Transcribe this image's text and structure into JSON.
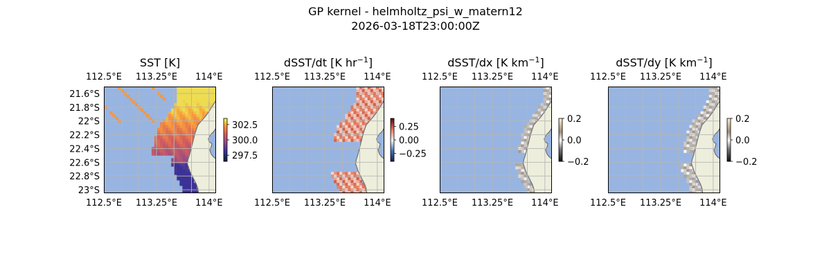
{
  "suptitle": {
    "line1": "GP kernel - helmholtz_psi_w_matern12",
    "line2": "2026-03-18T23:00:00Z"
  },
  "colors": {
    "ocean": "#98b5e2",
    "land": "#eeeedc",
    "coast": "#707070",
    "grid": "#b5b5b5"
  },
  "chart_data": [
    {
      "type": "heatmap",
      "title_main": "SST [K]",
      "title_sup": "",
      "title_end": "",
      "colormap": "thermal",
      "xlim": [
        112.5,
        114.1
      ],
      "ylim": [
        -23.05,
        -21.5
      ],
      "x_ticks": [
        112.5,
        113.25,
        114.0
      ],
      "x_tick_labels": [
        "112.5°E",
        "113.25°E",
        "114°E"
      ],
      "y_ticks": [
        -21.6,
        -21.8,
        -22.0,
        -22.2,
        -22.4,
        -22.6,
        -22.8,
        -23.0
      ],
      "y_tick_labels": [
        "21.6°S",
        "21.8°S",
        "22°S",
        "22.2°S",
        "22.4°S",
        "22.6°S",
        "22.8°S",
        "23°S"
      ],
      "grid": true,
      "colorbar": {
        "vmin": 296.5,
        "vmax": 303.5,
        "ticks": [
          302.5,
          300.0,
          297.5
        ],
        "tick_labels": [
          "302.5",
          "300.0",
          "297.5"
        ]
      }
    },
    {
      "type": "heatmap",
      "title_main": "dSST/dt [K hr",
      "title_sup": "−1",
      "title_end": "]",
      "colormap": "diverging-red-blue",
      "xlim": [
        112.5,
        114.1
      ],
      "ylim": [
        -23.05,
        -21.5
      ],
      "x_ticks": [
        112.5,
        113.25,
        114.0
      ],
      "x_tick_labels": [
        "112.5°E",
        "113.25°E",
        "114°E"
      ],
      "grid": true,
      "colorbar": {
        "vmin": -0.4,
        "vmax": 0.4,
        "ticks": [
          0.25,
          0.0,
          -0.25
        ],
        "tick_labels": [
          "0.25",
          "0.00",
          "−0.25"
        ]
      }
    },
    {
      "type": "heatmap",
      "title_main": "dSST/dx [K km",
      "title_sup": "−1",
      "title_end": "]",
      "colormap": "diverging-gray",
      "xlim": [
        112.5,
        114.1
      ],
      "ylim": [
        -23.05,
        -21.5
      ],
      "x_ticks": [
        112.5,
        113.25,
        114.0
      ],
      "x_tick_labels": [
        "112.5°E",
        "113.25°E",
        "114°E"
      ],
      "grid": true,
      "colorbar": {
        "vmin": -0.2,
        "vmax": 0.2,
        "ticks": [
          0.2,
          0.0,
          -0.2
        ],
        "tick_labels": [
          "0.2",
          "0.0",
          "−0.2"
        ]
      }
    },
    {
      "type": "heatmap",
      "title_main": "dSST/dy [K km",
      "title_sup": "−1",
      "title_end": "]",
      "colormap": "diverging-gray",
      "xlim": [
        112.5,
        114.1
      ],
      "ylim": [
        -23.05,
        -21.5
      ],
      "x_ticks": [
        112.5,
        113.25,
        114.0
      ],
      "x_tick_labels": [
        "112.5°E",
        "113.25°E",
        "114°E"
      ],
      "grid": true,
      "colorbar": {
        "vmin": -0.2,
        "vmax": 0.2,
        "ticks": [
          0.2,
          0.0,
          -0.2
        ],
        "tick_labels": [
          "0.2",
          "0.0",
          "−0.2"
        ]
      }
    }
  ]
}
